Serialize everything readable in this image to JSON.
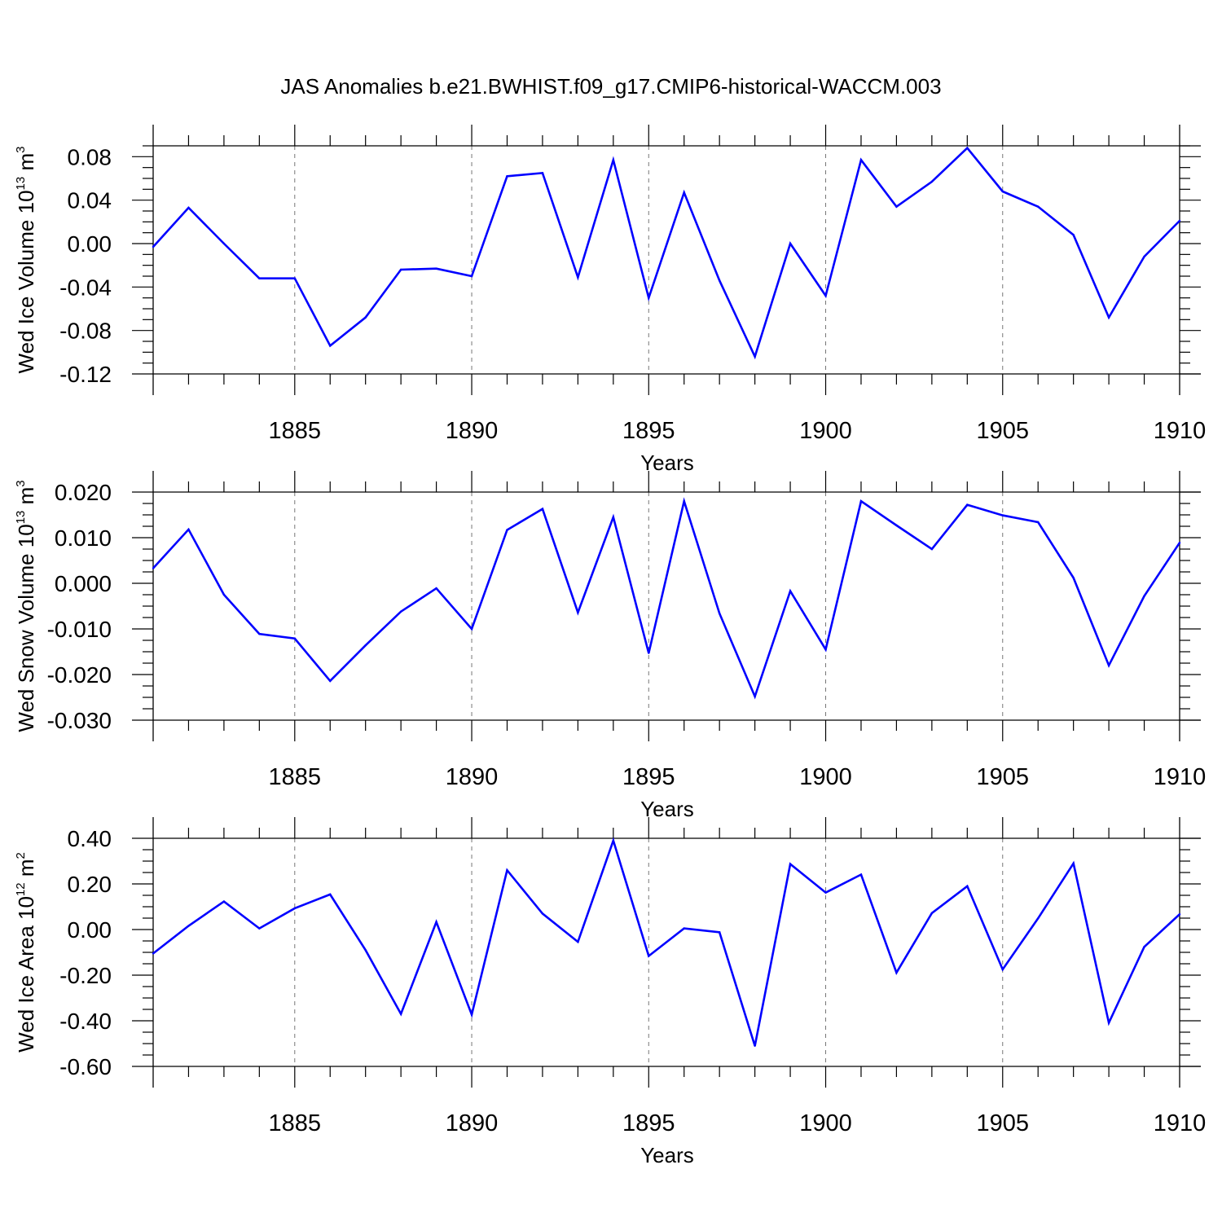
{
  "chart_data": {
    "title": "JAS Anomalies b.e21.BWHIST.f09_g17.CMIP6-historical-WACCM.003",
    "panels": [
      {
        "type": "line",
        "ylabel": "Wed Ice Volume",
        "yunit_base": "10",
        "yunit_exp": "13",
        "yunit_rest": " m",
        "yunit_rest_exp": "3",
        "xlabel": "Years",
        "xlim": [
          1881,
          1910
        ],
        "ylim": [
          -0.12,
          0.09
        ],
        "ytick_values": [
          -0.12,
          -0.08,
          -0.04,
          0.0,
          0.04,
          0.08
        ],
        "ytick_labels": [
          "-0.12",
          "-0.08",
          "-0.04",
          "0.00",
          "0.04",
          "0.08"
        ],
        "xtick_values": [
          1885,
          1890,
          1895,
          1900,
          1905,
          1910
        ],
        "xtick_labels": [
          "1885",
          "1890",
          "1895",
          "1900",
          "1905",
          "1910"
        ],
        "color": "#0000ff",
        "x": [
          1881,
          1882,
          1883,
          1884,
          1885,
          1886,
          1887,
          1888,
          1889,
          1890,
          1891,
          1892,
          1893,
          1894,
          1895,
          1896,
          1897,
          1898,
          1899,
          1900,
          1901,
          1902,
          1903,
          1904,
          1905,
          1906,
          1907,
          1908,
          1909,
          1910
        ],
        "values": [
          -0.003,
          0.033,
          0.0,
          -0.032,
          -0.032,
          -0.094,
          -0.068,
          -0.024,
          -0.023,
          -0.03,
          0.062,
          0.065,
          -0.031,
          0.077,
          -0.05,
          0.047,
          -0.034,
          -0.104,
          0.0,
          -0.048,
          0.077,
          0.034,
          0.057,
          0.088,
          0.048,
          0.034,
          0.008,
          -0.068,
          -0.012,
          0.021
        ]
      },
      {
        "type": "line",
        "ylabel": "Wed Snow Volume",
        "yunit_base": "10",
        "yunit_exp": "13",
        "yunit_rest": " m",
        "yunit_rest_exp": "3",
        "xlabel": "Years",
        "xlim": [
          1881,
          1910
        ],
        "ylim": [
          -0.03,
          0.02
        ],
        "ytick_values": [
          -0.03,
          -0.02,
          -0.01,
          0.0,
          0.01,
          0.02
        ],
        "ytick_labels": [
          "-0.030",
          "-0.020",
          "-0.010",
          "0.000",
          "0.010",
          "0.020"
        ],
        "xtick_values": [
          1885,
          1890,
          1895,
          1900,
          1905,
          1910
        ],
        "xtick_labels": [
          "1885",
          "1890",
          "1895",
          "1900",
          "1905",
          "1910"
        ],
        "color": "#0000ff",
        "x": [
          1881,
          1882,
          1883,
          1884,
          1885,
          1886,
          1887,
          1888,
          1889,
          1890,
          1891,
          1892,
          1893,
          1894,
          1895,
          1896,
          1897,
          1898,
          1899,
          1900,
          1901,
          1902,
          1903,
          1904,
          1905,
          1906,
          1907,
          1908,
          1909,
          1910
        ],
        "values": [
          0.0033,
          0.0118,
          -0.0025,
          -0.0111,
          -0.0121,
          -0.0214,
          -0.0136,
          -0.0062,
          -0.0011,
          -0.01,
          0.0117,
          0.0163,
          -0.0064,
          0.0145,
          -0.0153,
          0.018,
          -0.0066,
          -0.0248,
          -0.0017,
          -0.0145,
          0.018,
          0.0127,
          0.0075,
          0.0172,
          0.0149,
          0.0134,
          0.0012,
          -0.018,
          -0.0028,
          0.0089
        ]
      },
      {
        "type": "line",
        "ylabel": "Wed Ice Area",
        "yunit_base": "10",
        "yunit_exp": "12",
        "yunit_rest": " m",
        "yunit_rest_exp": "2",
        "xlabel": "Years",
        "xlim": [
          1881,
          1910
        ],
        "ylim": [
          -0.6,
          0.4
        ],
        "ytick_values": [
          -0.6,
          -0.4,
          -0.2,
          0.0,
          0.2,
          0.4
        ],
        "ytick_labels": [
          "-0.60",
          "-0.40",
          "-0.20",
          "0.00",
          "0.20",
          "0.40"
        ],
        "xtick_values": [
          1885,
          1890,
          1895,
          1900,
          1905,
          1910
        ],
        "xtick_labels": [
          "1885",
          "1890",
          "1895",
          "1900",
          "1905",
          "1910"
        ],
        "color": "#0000ff",
        "x": [
          1881,
          1882,
          1883,
          1884,
          1885,
          1886,
          1887,
          1888,
          1889,
          1890,
          1891,
          1892,
          1893,
          1894,
          1895,
          1896,
          1897,
          1898,
          1899,
          1900,
          1901,
          1902,
          1903,
          1904,
          1905,
          1906,
          1907,
          1908,
          1909,
          1910
        ],
        "values": [
          -0.105,
          0.016,
          0.123,
          0.005,
          0.093,
          0.154,
          -0.09,
          -0.37,
          0.033,
          -0.373,
          0.26,
          0.07,
          -0.054,
          0.39,
          -0.116,
          0.005,
          -0.012,
          -0.51,
          0.287,
          0.162,
          0.241,
          -0.189,
          0.072,
          0.19,
          -0.175,
          0.049,
          0.29,
          -0.409,
          -0.076,
          0.067
        ]
      }
    ]
  }
}
